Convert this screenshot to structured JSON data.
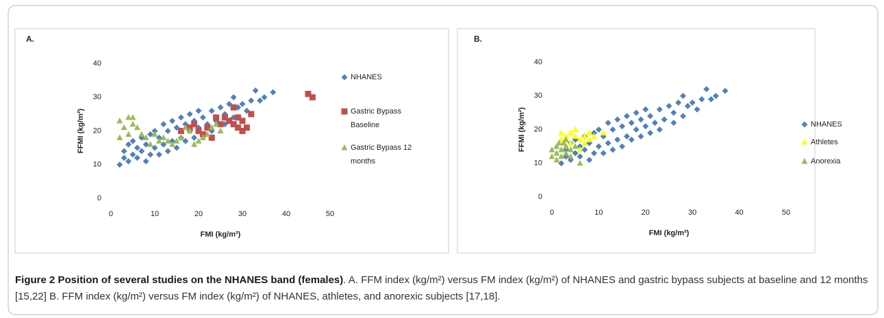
{
  "chart_data": [
    {
      "type": "scatter",
      "panel": "A.",
      "xlabel": "FMI (kg/m²)",
      "ylabel": "FFMI (kg/m²)",
      "xlim": [
        0,
        50
      ],
      "xticks": [
        0,
        10,
        20,
        30,
        40,
        50
      ],
      "ylim": [
        0,
        40
      ],
      "yticks": [
        0,
        10,
        20,
        30,
        40
      ],
      "series": [
        {
          "name": "NHANES",
          "color": "#4f81bd",
          "marker": "diamond",
          "x": [
            2,
            3,
            3,
            4,
            4,
            5,
            5,
            6,
            6,
            7,
            7,
            8,
            8,
            9,
            9,
            10,
            10,
            11,
            11,
            12,
            12,
            13,
            13,
            14,
            14,
            15,
            15,
            16,
            16,
            17,
            17,
            18,
            18,
            19,
            19,
            20,
            20,
            21,
            21,
            22,
            23,
            23,
            24,
            25,
            26,
            26,
            27,
            28,
            28,
            29,
            30,
            31,
            32,
            33,
            34,
            35,
            37
          ],
          "values": [
            10,
            12,
            14,
            11,
            16,
            13,
            17,
            12,
            15,
            14,
            18,
            11,
            16,
            13,
            19,
            15,
            20,
            13,
            18,
            16,
            22,
            14,
            20,
            17,
            23,
            15,
            21,
            18,
            24,
            17,
            22,
            20,
            25,
            18,
            23,
            21,
            26,
            19,
            24,
            22,
            20,
            26,
            23,
            27,
            22,
            25,
            28,
            24,
            30,
            27,
            28,
            26,
            29,
            32,
            29,
            30,
            31.5
          ]
        },
        {
          "name": "Gastric Bypass Baseline",
          "color": "#c0504d",
          "marker": "square",
          "x": [
            16,
            18,
            19,
            20,
            21,
            22,
            23,
            24,
            25,
            26,
            27,
            28,
            28,
            29,
            29,
            30,
            30,
            31,
            32,
            45,
            46
          ],
          "values": [
            20,
            21,
            22,
            20,
            19,
            21,
            18,
            24,
            22,
            24,
            23,
            27,
            22,
            24,
            21,
            23,
            20,
            21,
            25,
            31,
            30
          ]
        },
        {
          "name": "Gastric Bypass 12 months",
          "color": "#9bbb59",
          "marker": "triangle",
          "x": [
            2,
            2,
            3,
            4,
            4,
            5,
            5,
            6,
            7,
            8,
            9,
            10,
            11,
            12,
            13,
            14,
            15,
            16,
            17,
            18,
            19,
            20,
            21,
            22,
            23,
            24,
            25
          ],
          "values": [
            18,
            23,
            21,
            19,
            24,
            22,
            24,
            21,
            19,
            18,
            16,
            19,
            17,
            18,
            17,
            16,
            17,
            18,
            21,
            20,
            16,
            17,
            18,
            19,
            21,
            22,
            20
          ]
        }
      ]
    },
    {
      "type": "scatter",
      "panel": "B.",
      "xlabel": "FMI (kg/m²)",
      "ylabel": "FFMI (kg/m²)",
      "xlim": [
        0,
        50
      ],
      "xticks": [
        0,
        10,
        20,
        30,
        40,
        50
      ],
      "ylim": [
        0,
        40
      ],
      "yticks": [
        0,
        10,
        20,
        30,
        40
      ],
      "series": [
        {
          "name": "NHANES",
          "color": "#4f81bd",
          "marker": "diamond",
          "x": [
            2,
            3,
            3,
            4,
            4,
            5,
            5,
            6,
            6,
            7,
            7,
            8,
            8,
            9,
            9,
            10,
            10,
            11,
            11,
            12,
            12,
            13,
            13,
            14,
            14,
            15,
            15,
            16,
            16,
            17,
            17,
            18,
            18,
            19,
            19,
            20,
            20,
            21,
            21,
            22,
            23,
            23,
            24,
            25,
            26,
            26,
            27,
            28,
            28,
            29,
            30,
            31,
            32,
            33,
            34,
            35,
            37
          ],
          "values": [
            10,
            12,
            14,
            11,
            16,
            13,
            17,
            12,
            15,
            14,
            18,
            11,
            16,
            13,
            19,
            15,
            20,
            13,
            18,
            16,
            22,
            14,
            20,
            17,
            23,
            15,
            21,
            18,
            24,
            17,
            22,
            20,
            25,
            18,
            23,
            21,
            26,
            19,
            24,
            22,
            20,
            26,
            23,
            27,
            22,
            25,
            28,
            24,
            30,
            27,
            28,
            26,
            29,
            32,
            29,
            30,
            31.5
          ]
        },
        {
          "name": "Athletes",
          "color": "#ffff00",
          "marker": "triangle",
          "x": [
            2,
            2,
            3,
            3,
            4,
            4,
            5,
            5,
            6,
            6,
            7,
            7,
            8,
            8,
            9,
            11
          ],
          "values": [
            17,
            19,
            18,
            15,
            19,
            16,
            18,
            20,
            17,
            14,
            18,
            16,
            19,
            17,
            18,
            19
          ]
        },
        {
          "name": "Anorexia",
          "color": "#9bbb59",
          "marker": "triangle",
          "x": [
            0,
            0,
            1,
            1,
            1,
            1.5,
            2,
            2,
            2.5,
            3,
            3,
            3,
            4,
            4,
            5,
            6
          ],
          "values": [
            12,
            14,
            13,
            15,
            11,
            16,
            12,
            14,
            16,
            13,
            15,
            17,
            14,
            12,
            15,
            10
          ]
        }
      ]
    }
  ],
  "caption": {
    "title": "Figure 2 Position of several studies on the NHANES band (females)",
    "text": ". A. FFM index (kg/m²) versus FM index (kg/m²) of NHANES and gastric bypass subjects at baseline and 12 months [15,22] B. FFM index (kg/m²) versus FM index (kg/m²) of NHANES, athletes, and anorexic subjects [17,18]."
  }
}
